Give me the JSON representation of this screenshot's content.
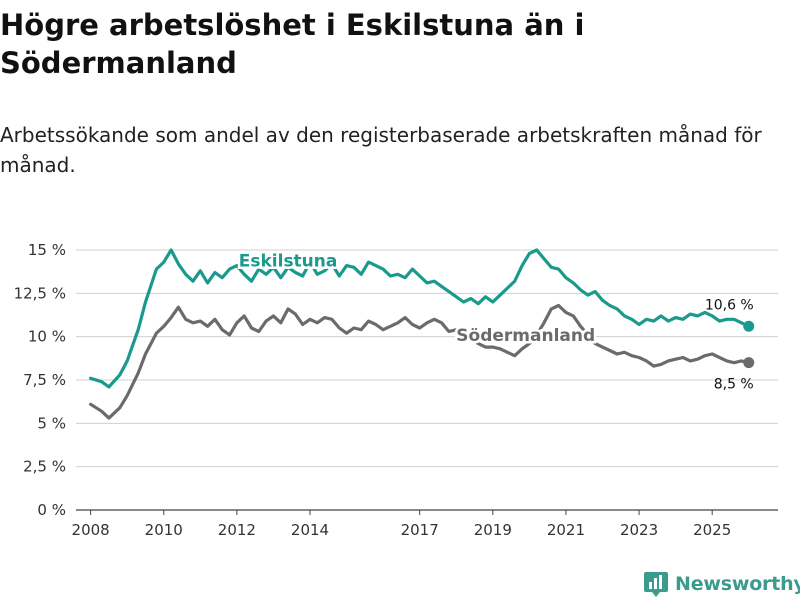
{
  "title": "Högre arbetslöshet i Eskilstuna än i Södermanland",
  "subtitle": "Arbetssökande som andel av den registerbaserade arbetskraften månad för månad.",
  "brand": {
    "name": "Newsworthy",
    "icon": "bar-chart-logo-icon"
  },
  "colors": {
    "eskilstuna": "#1a9a8c",
    "sodermanland": "#6b6b6b",
    "grid": "#d0d0d0",
    "brand": "#3a9b8e"
  },
  "chart_data": {
    "type": "line",
    "title": "Högre arbetslöshet i Eskilstuna än i Södermanland",
    "subtitle": "Arbetssökande som andel av den registerbaserade arbetskraften månad för månad.",
    "xlabel": "",
    "ylabel": "",
    "xlim": [
      2007.6,
      2026.8
    ],
    "ylim": [
      0,
      15
    ],
    "grid": true,
    "y_ticks": [
      0,
      2.5,
      5,
      7.5,
      10,
      12.5,
      15
    ],
    "y_tick_labels": [
      "0 %",
      "2,5 %",
      "5 %",
      "7,5 %",
      "10 %",
      "12,5 %",
      "15 %"
    ],
    "x_ticks": [
      2008,
      2010,
      2012,
      2014,
      2017,
      2019,
      2021,
      2023,
      2025
    ],
    "x_tick_labels": [
      "2008",
      "2010",
      "2012",
      "2014",
      "2017",
      "2019",
      "2021",
      "2023",
      "2025"
    ],
    "series": [
      {
        "name": "Eskilstuna",
        "label": "Eskilstuna",
        "end_label": "10,6 %",
        "x": [
          2008.0,
          2008.3,
          2008.5,
          2008.8,
          2009.0,
          2009.3,
          2009.5,
          2009.8,
          2010.0,
          2010.2,
          2010.4,
          2010.6,
          2010.8,
          2011.0,
          2011.2,
          2011.4,
          2011.6,
          2011.8,
          2012.0,
          2012.2,
          2012.4,
          2012.6,
          2012.8,
          2013.0,
          2013.2,
          2013.4,
          2013.6,
          2013.8,
          2014.0,
          2014.2,
          2014.4,
          2014.6,
          2014.8,
          2015.0,
          2015.2,
          2015.4,
          2015.6,
          2015.8,
          2016.0,
          2016.2,
          2016.4,
          2016.6,
          2016.8,
          2017.0,
          2017.2,
          2017.4,
          2017.6,
          2017.8,
          2018.0,
          2018.2,
          2018.4,
          2018.6,
          2018.8,
          2019.0,
          2019.2,
          2019.4,
          2019.6,
          2019.8,
          2020.0,
          2020.2,
          2020.4,
          2020.6,
          2020.8,
          2021.0,
          2021.2,
          2021.4,
          2021.6,
          2021.8,
          2022.0,
          2022.2,
          2022.4,
          2022.6,
          2022.8,
          2023.0,
          2023.2,
          2023.4,
          2023.6,
          2023.8,
          2024.0,
          2024.2,
          2024.4,
          2024.6,
          2024.8,
          2025.0,
          2025.2,
          2025.4,
          2025.6,
          2025.8,
          2026.0
        ],
        "values": [
          7.6,
          7.4,
          7.1,
          7.8,
          8.6,
          10.4,
          12.0,
          13.9,
          14.3,
          15.0,
          14.2,
          13.6,
          13.2,
          13.8,
          13.1,
          13.7,
          13.4,
          13.9,
          14.1,
          13.6,
          13.2,
          13.9,
          13.6,
          14.0,
          13.4,
          14.0,
          13.7,
          13.5,
          14.3,
          13.6,
          13.8,
          14.2,
          13.5,
          14.1,
          14.0,
          13.6,
          14.3,
          14.1,
          13.9,
          13.5,
          13.6,
          13.4,
          13.9,
          13.5,
          13.1,
          13.2,
          12.9,
          12.6,
          12.3,
          12.0,
          12.2,
          11.9,
          12.3,
          12.0,
          12.4,
          12.8,
          13.2,
          14.1,
          14.8,
          15.0,
          14.5,
          14.0,
          13.9,
          13.4,
          13.1,
          12.7,
          12.4,
          12.6,
          12.1,
          11.8,
          11.6,
          11.2,
          11.0,
          10.7,
          11.0,
          10.9,
          11.2,
          10.9,
          11.1,
          11.0,
          11.3,
          11.2,
          11.4,
          11.2,
          10.9,
          11.0,
          11.0,
          10.8,
          10.6
        ]
      },
      {
        "name": "Södermanland",
        "label": "Södermanland",
        "end_label": "8,5 %",
        "x": [
          2008.0,
          2008.3,
          2008.5,
          2008.8,
          2009.0,
          2009.3,
          2009.5,
          2009.8,
          2010.0,
          2010.2,
          2010.4,
          2010.6,
          2010.8,
          2011.0,
          2011.2,
          2011.4,
          2011.6,
          2011.8,
          2012.0,
          2012.2,
          2012.4,
          2012.6,
          2012.8,
          2013.0,
          2013.2,
          2013.4,
          2013.6,
          2013.8,
          2014.0,
          2014.2,
          2014.4,
          2014.6,
          2014.8,
          2015.0,
          2015.2,
          2015.4,
          2015.6,
          2015.8,
          2016.0,
          2016.2,
          2016.4,
          2016.6,
          2016.8,
          2017.0,
          2017.2,
          2017.4,
          2017.6,
          2017.8,
          2018.0,
          2018.2,
          2018.4,
          2018.6,
          2018.8,
          2019.0,
          2019.2,
          2019.4,
          2019.6,
          2019.8,
          2020.0,
          2020.2,
          2020.4,
          2020.6,
          2020.8,
          2021.0,
          2021.2,
          2021.4,
          2021.6,
          2021.8,
          2022.0,
          2022.2,
          2022.4,
          2022.6,
          2022.8,
          2023.0,
          2023.2,
          2023.4,
          2023.6,
          2023.8,
          2024.0,
          2024.2,
          2024.4,
          2024.6,
          2024.8,
          2025.0,
          2025.2,
          2025.4,
          2025.6,
          2025.8,
          2026.0
        ],
        "values": [
          6.1,
          5.7,
          5.3,
          5.9,
          6.6,
          7.9,
          9.0,
          10.2,
          10.6,
          11.1,
          11.7,
          11.0,
          10.8,
          10.9,
          10.6,
          11.0,
          10.4,
          10.1,
          10.8,
          11.2,
          10.5,
          10.3,
          10.9,
          11.2,
          10.8,
          11.6,
          11.3,
          10.7,
          11.0,
          10.8,
          11.1,
          11.0,
          10.5,
          10.2,
          10.5,
          10.4,
          10.9,
          10.7,
          10.4,
          10.6,
          10.8,
          11.1,
          10.7,
          10.5,
          10.8,
          11.0,
          10.8,
          10.3,
          10.4,
          10.1,
          9.9,
          9.6,
          9.4,
          9.4,
          9.3,
          9.1,
          8.9,
          9.3,
          9.6,
          10.1,
          10.8,
          11.6,
          11.8,
          11.4,
          11.2,
          10.6,
          10.1,
          9.6,
          9.4,
          9.2,
          9.0,
          9.1,
          8.9,
          8.8,
          8.6,
          8.3,
          8.4,
          8.6,
          8.7,
          8.8,
          8.6,
          8.7,
          8.9,
          9.0,
          8.8,
          8.6,
          8.5,
          8.6,
          8.5
        ]
      }
    ]
  }
}
